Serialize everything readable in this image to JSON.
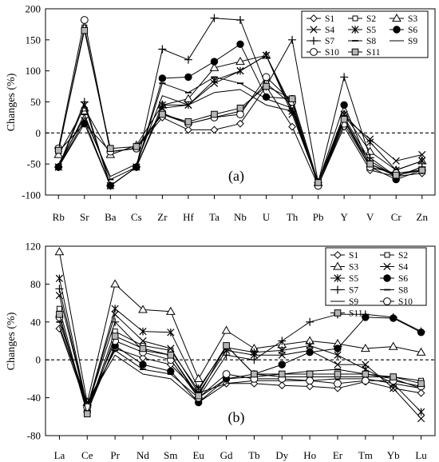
{
  "chart_data": [
    {
      "type": "line",
      "panel_label": "(a)",
      "ylabel": "Changes (%)",
      "ylim": [
        -100,
        200
      ],
      "yticks": [
        -100,
        -50,
        0,
        50,
        100,
        150,
        200
      ],
      "baseline": 0,
      "categories": [
        "Rb",
        "Sr",
        "Ba",
        "Cs",
        "Zr",
        "Hf",
        "Ta",
        "Nb",
        "U",
        "Th",
        "Pb",
        "Y",
        "V",
        "Cr",
        "Zn"
      ],
      "legend_position": "top-right",
      "legend_columns": 3,
      "series": [
        {
          "name": "S1",
          "marker": "diamond",
          "values": [
            -30,
            15,
            -30,
            -25,
            25,
            5,
            5,
            15,
            75,
            10,
            -85,
            10,
            -60,
            -70,
            -65
          ]
        },
        {
          "name": "S2",
          "marker": "square-small",
          "values": [
            -30,
            170,
            -30,
            -25,
            30,
            15,
            25,
            35,
            80,
            45,
            -85,
            20,
            -55,
            -65,
            -60
          ]
        },
        {
          "name": "S3",
          "marker": "triangle",
          "values": [
            -35,
            40,
            -35,
            -20,
            45,
            55,
            105,
            115,
            125,
            40,
            -80,
            30,
            -30,
            -60,
            -45
          ]
        },
        {
          "name": "S4",
          "marker": "x",
          "values": [
            -55,
            20,
            -85,
            -55,
            40,
            45,
            80,
            100,
            125,
            30,
            -80,
            25,
            -10,
            -45,
            -35
          ]
        },
        {
          "name": "S5",
          "marker": "asterisk",
          "values": [
            -55,
            45,
            -85,
            -55,
            45,
            45,
            85,
            100,
            125,
            35,
            -80,
            30,
            -15,
            -60,
            -45
          ]
        },
        {
          "name": "S6",
          "marker": "circle-filled",
          "values": [
            -55,
            15,
            -85,
            -55,
            88,
            90,
            115,
            143,
            58,
            55,
            -80,
            45,
            -55,
            -75,
            -60
          ]
        },
        {
          "name": "S7",
          "marker": "plus",
          "values": [
            -55,
            50,
            -85,
            -55,
            135,
            118,
            185,
            182,
            75,
            150,
            -80,
            90,
            -40,
            -70,
            -55
          ]
        },
        {
          "name": "S8",
          "marker": "dash",
          "values": [
            -55,
            30,
            -75,
            -55,
            80,
            65,
            90,
            80,
            55,
            40,
            -80,
            25,
            -45,
            -70,
            -55
          ]
        },
        {
          "name": "S9",
          "marker": "line",
          "values": [
            -50,
            25,
            -70,
            -50,
            60,
            45,
            65,
            70,
            45,
            35,
            -80,
            20,
            -50,
            -70,
            -55
          ]
        },
        {
          "name": "S10",
          "marker": "circle-open",
          "values": [
            -25,
            182,
            -30,
            -25,
            32,
            15,
            25,
            30,
            90,
            50,
            -85,
            15,
            -55,
            -65,
            -60
          ]
        },
        {
          "name": "S11",
          "marker": "square-gray",
          "values": [
            -28,
            165,
            -25,
            -22,
            30,
            18,
            30,
            40,
            75,
            55,
            -80,
            22,
            -50,
            -68,
            -60
          ]
        }
      ]
    },
    {
      "type": "line",
      "panel_label": "(b)",
      "ylabel": "Changes (%)",
      "ylim": [
        -80,
        120
      ],
      "yticks": [
        -80,
        -40,
        0,
        40,
        80,
        120
      ],
      "baseline": 0,
      "categories": [
        "La",
        "Ce",
        "Pr",
        "Nd",
        "Sm",
        "Eu",
        "Gd",
        "Tb",
        "Dy",
        "Ho",
        "Er",
        "Tm",
        "Yb",
        "Lu"
      ],
      "legend_position": "top-right",
      "legend_columns": 2,
      "series": [
        {
          "name": "S1",
          "marker": "diamond",
          "values": [
            33,
            -50,
            12,
            2,
            -5,
            -35,
            -25,
            -25,
            -27,
            -28,
            -30,
            -23,
            -30,
            -35
          ]
        },
        {
          "name": "S2",
          "marker": "square-small",
          "values": [
            54,
            -55,
            30,
            15,
            10,
            -32,
            15,
            -15,
            -18,
            -18,
            -18,
            -18,
            -18,
            -22
          ]
        },
        {
          "name": "S3",
          "marker": "triangle",
          "values": [
            114,
            -45,
            80,
            53,
            51,
            -20,
            31,
            12,
            16,
            20,
            17,
            12,
            14,
            8
          ]
        },
        {
          "name": "S4",
          "marker": "x",
          "values": [
            68,
            -50,
            48,
            20,
            12,
            -35,
            10,
            5,
            5,
            10,
            -5,
            -5,
            -30,
            -62
          ]
        },
        {
          "name": "S5",
          "marker": "asterisk",
          "values": [
            86,
            -50,
            54,
            30,
            29,
            -30,
            13,
            8,
            10,
            15,
            5,
            -10,
            -25,
            -55
          ]
        },
        {
          "name": "S6",
          "marker": "circle-filled",
          "values": [
            46,
            -55,
            15,
            -5,
            -12,
            -45,
            -20,
            -15,
            -5,
            8,
            12,
            45,
            44,
            29
          ]
        },
        {
          "name": "S7",
          "marker": "plus",
          "values": [
            75,
            -50,
            40,
            10,
            5,
            -40,
            5,
            0,
            20,
            40,
            48,
            48,
            45,
            30
          ]
        },
        {
          "name": "S8",
          "marker": "dash",
          "values": [
            40,
            -45,
            10,
            -10,
            -15,
            -40,
            -20,
            -18,
            -15,
            -12,
            -10,
            -15,
            -20,
            -30
          ]
        },
        {
          "name": "S9",
          "marker": "line",
          "values": [
            35,
            -45,
            5,
            -15,
            -20,
            -45,
            -25,
            -22,
            -22,
            -22,
            -20,
            -20,
            -25,
            -30
          ]
        },
        {
          "name": "S10",
          "marker": "circle-open",
          "values": [
            45,
            -50,
            20,
            8,
            0,
            -40,
            -15,
            -20,
            -20,
            -22,
            -25,
            -22,
            -22,
            -28
          ]
        },
        {
          "name": "S11",
          "marker": "square-gray",
          "values": [
            48,
            -57,
            25,
            12,
            5,
            -38,
            15,
            -15,
            -15,
            -15,
            -15,
            -15,
            -18,
            -25
          ]
        }
      ]
    }
  ]
}
